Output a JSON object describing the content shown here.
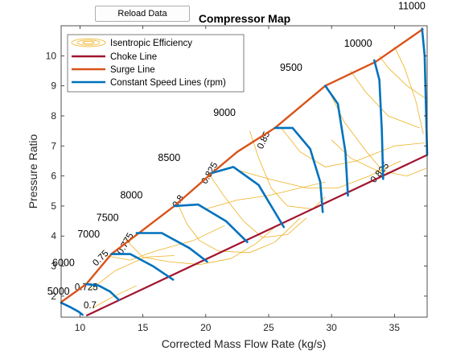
{
  "toolbar": {
    "reload_label": "Reload Data"
  },
  "chart_data": {
    "type": "line",
    "title": "Compressor Map",
    "xlabel": "Corrected Mass Flow Rate (kg/s)",
    "ylabel": "Pressure Ratio",
    "xlim": [
      8.5,
      37.6
    ],
    "ylim": [
      1.3,
      11.0
    ],
    "xticks": [
      10,
      15,
      20,
      25,
      30,
      35
    ],
    "yticks": [
      2,
      3,
      4,
      5,
      6,
      7,
      8,
      9,
      10
    ],
    "grid": false,
    "legend_position": "top-left",
    "legend": [
      "Isentropic Efficiency",
      "Choke Line",
      "Surge Line",
      "Constant Speed Lines (rpm)"
    ],
    "colors": {
      "choke": "#a2142f",
      "surge": "#d95319",
      "speed": "#0072bd",
      "efficiency": "#edb120"
    },
    "choke_line": [
      [
        10.5,
        1.35
      ],
      [
        37.6,
        6.7
      ]
    ],
    "surge_line": [
      [
        8.5,
        1.8
      ],
      [
        10.5,
        2.4
      ],
      [
        12.5,
        3.4
      ],
      [
        17.5,
        5.0
      ],
      [
        20.5,
        6.1
      ],
      [
        22.5,
        6.8
      ],
      [
        25.5,
        7.6
      ],
      [
        29.5,
        9.0
      ],
      [
        33.5,
        9.8
      ],
      [
        37.3,
        10.9
      ]
    ],
    "speed_lines": [
      {
        "rpm": "5000",
        "label_at": [
          7.4,
          2.05
        ],
        "points": [
          [
            8.5,
            1.78
          ],
          [
            9.3,
            1.62
          ],
          [
            9.9,
            1.48
          ],
          [
            10.2,
            1.38
          ]
        ]
      },
      {
        "rpm": "6000",
        "label_at": [
          7.8,
          3.0
        ],
        "points": [
          [
            10.5,
            2.4
          ],
          [
            11.5,
            2.35
          ],
          [
            12.4,
            2.15
          ],
          [
            13.1,
            1.87
          ]
        ]
      },
      {
        "rpm": "7000",
        "label_at": [
          9.8,
          3.95
        ],
        "points": [
          [
            12.5,
            3.4
          ],
          [
            14.0,
            3.4
          ],
          [
            15.8,
            3.0
          ],
          [
            17.4,
            2.55
          ]
        ]
      },
      {
        "rpm": "7500",
        "label_at": [
          11.3,
          4.5
        ],
        "points": [
          [
            14.5,
            4.1
          ],
          [
            16.5,
            4.1
          ],
          [
            18.7,
            3.6
          ],
          [
            20.1,
            3.15
          ]
        ]
      },
      {
        "rpm": "8000",
        "label_at": [
          13.2,
          5.25
        ],
        "points": [
          [
            17.5,
            5.0
          ],
          [
            19.4,
            5.05
          ],
          [
            21.6,
            4.5
          ],
          [
            23.3,
            3.8
          ]
        ]
      },
      {
        "rpm": "8500",
        "label_at": [
          16.2,
          6.5
        ],
        "points": [
          [
            20.5,
            6.1
          ],
          [
            22.2,
            6.3
          ],
          [
            24.2,
            5.7
          ],
          [
            26.2,
            4.3
          ]
        ]
      },
      {
        "rpm": "9000",
        "label_at": [
          20.6,
          8.0
        ],
        "points": [
          [
            25.5,
            7.6
          ],
          [
            26.9,
            7.6
          ],
          [
            28.3,
            6.9
          ],
          [
            29.1,
            5.8
          ],
          [
            29.3,
            4.8
          ]
        ]
      },
      {
        "rpm": "9500",
        "label_at": [
          25.9,
          9.5
        ],
        "points": [
          [
            29.5,
            9.0
          ],
          [
            30.5,
            8.4
          ],
          [
            31.1,
            6.8
          ],
          [
            31.3,
            5.35
          ]
        ]
      },
      {
        "rpm": "10000",
        "label_at": [
          31.0,
          10.3
        ],
        "points": [
          [
            33.4,
            9.85
          ],
          [
            33.8,
            9.2
          ],
          [
            34.0,
            7.5
          ],
          [
            34.1,
            5.9
          ]
        ]
      },
      {
        "rpm": "11000",
        "label_at": [
          35.3,
          11.55
        ],
        "points": [
          [
            37.2,
            10.9
          ],
          [
            37.4,
            10.0
          ],
          [
            37.6,
            6.7
          ]
        ]
      }
    ],
    "efficiency_labels": [
      {
        "text": "0.7",
        "x": 10.8,
        "y": 1.6,
        "angle": 0
      },
      {
        "text": "0.725",
        "x": 10.5,
        "y": 2.2,
        "angle": 0
      },
      {
        "text": "0.75",
        "x": 11.8,
        "y": 3.2,
        "angle": -45
      },
      {
        "text": "0.775",
        "x": 13.8,
        "y": 3.7,
        "angle": -60
      },
      {
        "text": "0.8",
        "x": 18.0,
        "y": 5.1,
        "angle": -55
      },
      {
        "text": "0.825",
        "x": 20.5,
        "y": 6.05,
        "angle": -60
      },
      {
        "text": "0.85",
        "x": 24.8,
        "y": 7.15,
        "angle": -65
      },
      {
        "text": "0.825",
        "x": 34.0,
        "y": 6.05,
        "angle": -50
      }
    ],
    "efficiency_contours": [
      [
        [
          11.0,
          1.6
        ],
        [
          12.5,
          1.95
        ],
        [
          14.5,
          2.35
        ]
      ],
      [
        [
          10.8,
          2.2
        ],
        [
          12.8,
          2.85
        ],
        [
          15.2,
          3.3
        ],
        [
          17.5,
          3.35
        ]
      ],
      [
        [
          12.0,
          3.35
        ],
        [
          14.0,
          3.2
        ],
        [
          16.0,
          3.5
        ],
        [
          19.0,
          3.85
        ],
        [
          21.5,
          4.35
        ]
      ],
      [
        [
          13.6,
          3.9
        ],
        [
          15.0,
          3.3
        ],
        [
          17.0,
          3.15
        ],
        [
          19.5,
          3.05
        ],
        [
          22.0,
          3.25
        ],
        [
          24.0,
          3.75
        ],
        [
          25.5,
          4.3
        ]
      ],
      [
        [
          17.8,
          5.05
        ],
        [
          18.5,
          4.4
        ],
        [
          19.5,
          3.85
        ],
        [
          21.0,
          3.5
        ],
        [
          23.5,
          3.45
        ],
        [
          25.5,
          3.8
        ],
        [
          27.5,
          4.6
        ]
      ],
      [
        [
          20.2,
          6.1
        ],
        [
          21.5,
          5.3
        ],
        [
          23.0,
          4.5
        ],
        [
          24.5,
          3.95
        ],
        [
          26.5,
          4.05
        ],
        [
          28.0,
          4.6
        ]
      ],
      [
        [
          23.5,
          7.5
        ],
        [
          24.2,
          6.6
        ],
        [
          25.2,
          5.6
        ],
        [
          26.5,
          5.0
        ],
        [
          28.5,
          4.9
        ],
        [
          29.5,
          5.3
        ]
      ],
      [
        [
          26.0,
          7.6
        ],
        [
          27.5,
          6.8
        ],
        [
          29.5,
          6.3
        ],
        [
          32.0,
          6.5
        ],
        [
          35.0,
          7.0
        ],
        [
          37.4,
          7.1
        ]
      ],
      [
        [
          29.6,
          9.0
        ],
        [
          31.0,
          7.8
        ],
        [
          32.8,
          6.8
        ],
        [
          34.0,
          6.2
        ]
      ],
      [
        [
          31.5,
          9.5
        ],
        [
          32.7,
          8.8
        ],
        [
          34.5,
          8.0
        ],
        [
          37.0,
          7.6
        ]
      ],
      [
        [
          33.8,
          10.0
        ],
        [
          34.5,
          9.6
        ],
        [
          36.0,
          9.0
        ],
        [
          37.4,
          8.6
        ]
      ],
      [
        [
          35.0,
          10.3
        ],
        [
          35.8,
          9.6
        ],
        [
          36.7,
          8.5
        ],
        [
          37.3,
          7.4
        ]
      ],
      [
        [
          20.0,
          4.9
        ],
        [
          22.5,
          5.2
        ],
        [
          25.0,
          5.35
        ],
        [
          27.5,
          5.6
        ],
        [
          29.5,
          5.8
        ]
      ],
      [
        [
          22.5,
          6.2
        ],
        [
          25.0,
          5.9
        ],
        [
          28.0,
          5.6
        ],
        [
          30.5,
          5.6
        ],
        [
          33.0,
          6.0
        ],
        [
          35.5,
          6.5
        ]
      ],
      [
        [
          30.0,
          7.2
        ],
        [
          31.5,
          6.6
        ],
        [
          33.5,
          6.2
        ],
        [
          36.0,
          6.0
        ],
        [
          37.5,
          6.25
        ]
      ]
    ]
  }
}
